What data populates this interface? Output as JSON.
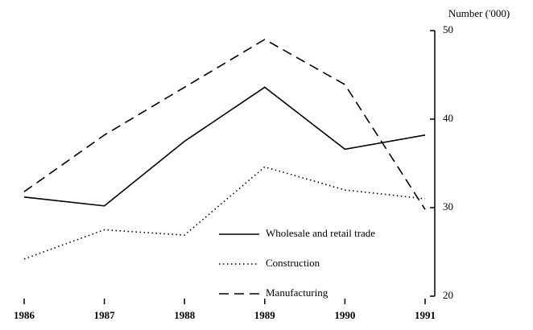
{
  "chart_data": {
    "type": "line",
    "y_axis_label": "Number ('000)",
    "categories": [
      "1986",
      "1987",
      "1988",
      "1989",
      "1990",
      "1991"
    ],
    "series": [
      {
        "name": "Wholesale and retail trade",
        "color": "#000000",
        "dash": "solid",
        "values": [
          31.2,
          30.2,
          37.5,
          43.6,
          36.6,
          38.2
        ]
      },
      {
        "name": "Construction",
        "color": "#000000",
        "dash": "dotted",
        "values": [
          24.2,
          27.5,
          26.9,
          34.6,
          32,
          31
        ]
      },
      {
        "name": "Manufacturing",
        "color": "#000000",
        "dash": "dashed",
        "values": [
          31.8,
          38.2,
          43.6,
          49,
          43.9,
          29.8
        ]
      }
    ],
    "ylim": [
      20,
      50
    ],
    "yticks": [
      20,
      30,
      40,
      50
    ],
    "y_axis_side": "right",
    "grid": false
  }
}
